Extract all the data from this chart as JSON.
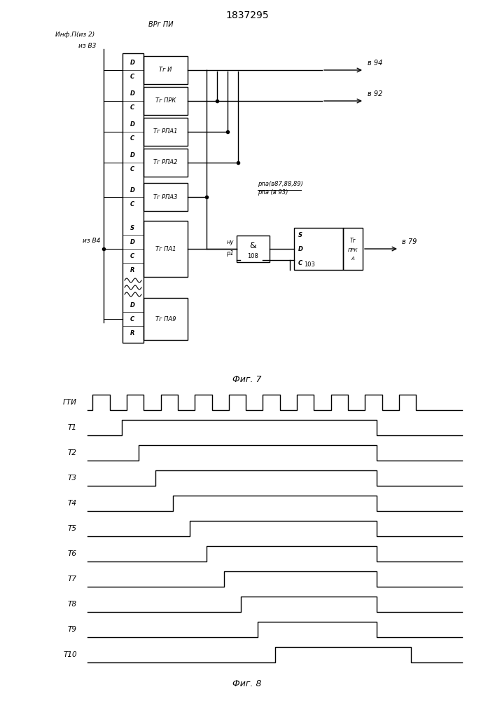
{
  "title": "1837295",
  "fig7_caption": "Фиг. 7",
  "fig8_caption": "Фиг. 8",
  "bg_color": "#ffffff",
  "line_color": "#000000",
  "lw": 1.0,
  "thin_lw": 0.8
}
